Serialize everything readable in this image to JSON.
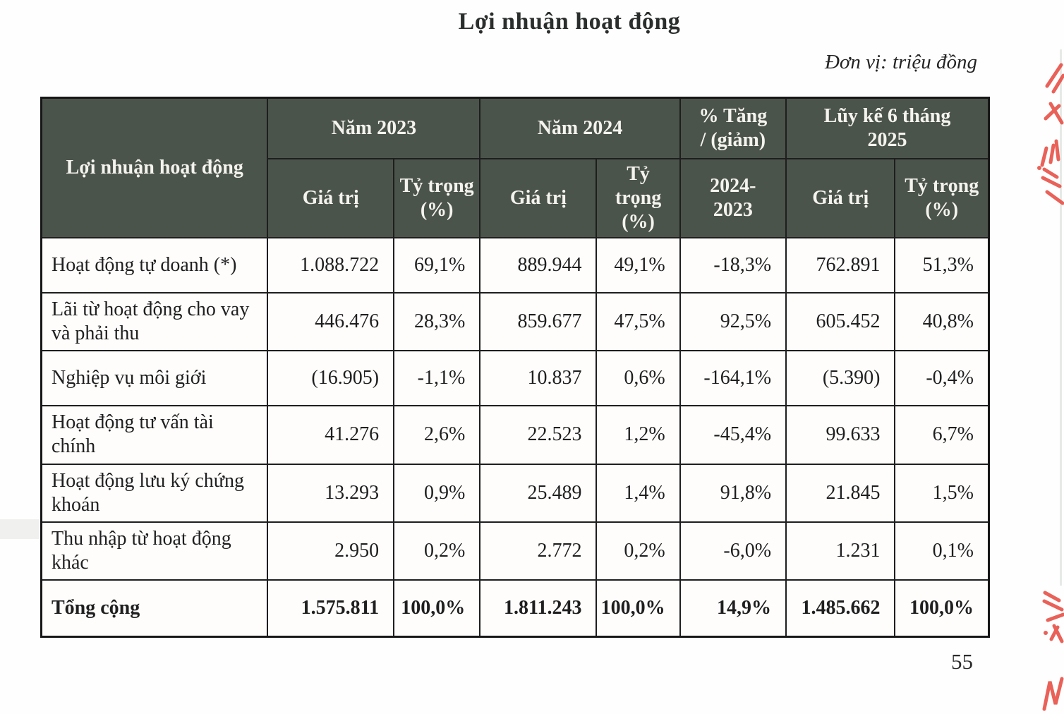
{
  "page": {
    "title": "Lợi nhuận hoạt động",
    "unit_note": "Đơn vị: triệu đồng",
    "page_number": "55"
  },
  "colors": {
    "header_background": "#4b544b",
    "header_text": "#f4f3ee",
    "red_ink": "#e8544a"
  },
  "table": {
    "corner_label": "Lợi nhuận hoạt động",
    "group_headers": [
      "Năm 2023",
      "Năm 2024",
      "% Tăng\n/ (giảm)",
      "Lũy kế 6 tháng\n2025"
    ],
    "sub_headers": [
      "Giá trị",
      "Tỷ trọng\n(%)",
      "Giá trị",
      "Tỷ trọng\n(%)",
      "2024-\n2023",
      "Giá trị",
      "Tỷ trọng\n(%)"
    ],
    "rows": [
      {
        "label": "Hoạt động tự doanh (*)",
        "values": [
          "1.088.722",
          "69,1%",
          "889.944",
          "49,1%",
          "-18,3%",
          "762.891",
          "51,3%"
        ],
        "is_total": false
      },
      {
        "label": "Lãi từ hoạt động cho vay và phải thu",
        "values": [
          "446.476",
          "28,3%",
          "859.677",
          "47,5%",
          "92,5%",
          "605.452",
          "40,8%"
        ],
        "is_total": false
      },
      {
        "label": "Nghiệp vụ môi giới",
        "values": [
          "(16.905)",
          "-1,1%",
          "10.837",
          "0,6%",
          "-164,1%",
          "(5.390)",
          "-0,4%"
        ],
        "is_total": false
      },
      {
        "label": "Hoạt động tư vấn tài chính",
        "values": [
          "41.276",
          "2,6%",
          "22.523",
          "1,2%",
          "-45,4%",
          "99.633",
          "6,7%"
        ],
        "is_total": false
      },
      {
        "label": "Hoạt động lưu ký chứng khoán",
        "values": [
          "13.293",
          "0,9%",
          "25.489",
          "1,4%",
          "91,8%",
          "21.845",
          "1,5%"
        ],
        "is_total": false
      },
      {
        "label": "Thu nhập từ hoạt động khác",
        "values": [
          "2.950",
          "0,2%",
          "2.772",
          "0,2%",
          "-6,0%",
          "1.231",
          "0,1%"
        ],
        "is_total": false
      },
      {
        "label": "Tổng cộng",
        "values": [
          "1.575.811",
          "100,0%",
          "1.811.243",
          "100,0%",
          "14,9%",
          "1.485.662",
          "100,0%"
        ],
        "is_total": true
      }
    ]
  }
}
